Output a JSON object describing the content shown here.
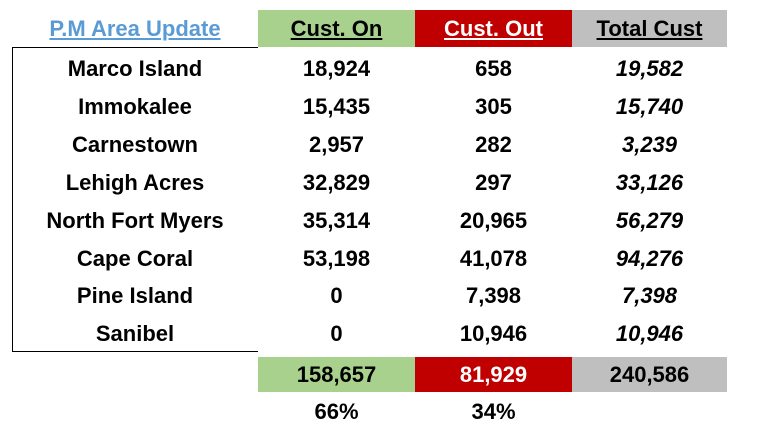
{
  "header": [
    "P.M Area Update",
    "Cust. On",
    "Cust. Out",
    "Total Cust"
  ],
  "rows": [
    [
      "Marco Island",
      "18,924",
      "658",
      "19,582"
    ],
    [
      "Immokalee",
      "15,435",
      "305",
      "15,740"
    ],
    [
      "Carnestown",
      "2,957",
      "282",
      "3,239"
    ],
    [
      "Lehigh Acres",
      "32,829",
      "297",
      "33,126"
    ],
    [
      "North Fort Myers",
      "35,314",
      "20,965",
      "56,279"
    ],
    [
      "Cape Coral",
      "53,198",
      "41,078",
      "94,276"
    ],
    [
      "Pine Island",
      "0",
      "7,398",
      "7,398"
    ],
    [
      "Sanibel",
      "0",
      "10,946",
      "10,946"
    ]
  ],
  "totals": [
    "158,657",
    "81,929",
    "240,586"
  ],
  "percentages": [
    "66%",
    "34%"
  ]
}
